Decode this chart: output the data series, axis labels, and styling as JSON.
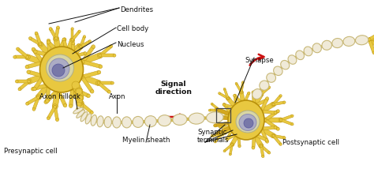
{
  "background_color": "#ffffff",
  "cell_color": "#e8c840",
  "cell_color2": "#d4a820",
  "cell_edge": "#b8900a",
  "nucleus_outer": "#c8c890",
  "nucleus_inner": "#8890b0",
  "nucleus_dark": "#6878a0",
  "myelin_fill": "#f0ead8",
  "myelin_edge": "#c8b878",
  "axon_core": "#d4b840",
  "label_color": "#111111",
  "red_arrow": "#cc1111",
  "line_color": "#222222",
  "labels": {
    "dendrites": "Dendrites",
    "cell_body": "Cell body",
    "nucleus": "Nucleus",
    "axon_hillock": "Axon hillock",
    "axon": "Axon",
    "presynaptic": "Presynaptic cell",
    "myelin": "Myelin sheath",
    "signal": "Signal\ndirection",
    "synaptic_terminals": "Synaptic\nterminals",
    "synapse": "Synapse",
    "postsynaptic": "Postsynaptic cell"
  },
  "fig_width": 4.74,
  "fig_height": 2.14,
  "dpi": 100
}
